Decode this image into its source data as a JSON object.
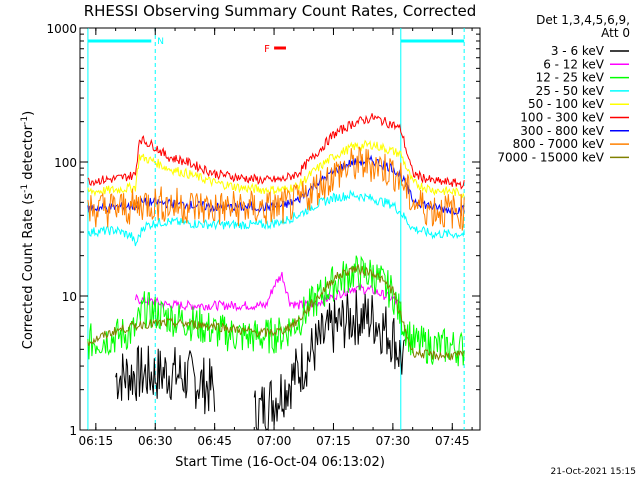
{
  "chart_data": {
    "type": "line",
    "title": "RHESSI Observing Summary Count Rates, Corrected",
    "xlabel": "Start Time (16-Oct-04 06:13:02)",
    "ylabel_parts": [
      "Corrected Count Rate (s",
      "-1",
      " detector",
      "-1",
      ")"
    ],
    "yscale": "log",
    "ylim": [
      1,
      1000
    ],
    "xlim": [
      "06:11",
      "07:52"
    ],
    "x_ticks": [
      "06:15",
      "06:30",
      "06:45",
      "07:00",
      "07:15",
      "07:30",
      "07:45"
    ],
    "y_ticks": [
      "1",
      "10",
      "100",
      "1000"
    ],
    "grid": false,
    "legend_header": [
      "Det 1,3,4,5,6,9,",
      "Att 0"
    ],
    "legend_position": "right",
    "stamp": "21-Oct-2021 15:15",
    "markers": {
      "night_label": "N",
      "flare_label": "F",
      "night_bar_1": [
        "06:13",
        "06:29"
      ],
      "night_bar_2": [
        "07:32",
        "07:48"
      ],
      "dashed_lines": [
        "06:30",
        "07:48"
      ],
      "solid_lines": [
        "06:13",
        "07:32"
      ],
      "flare_bar": [
        "06:59",
        "07:02"
      ]
    },
    "x_values": [
      "06:13",
      "06:20",
      "06:25",
      "06:27",
      "06:30",
      "06:33",
      "06:38",
      "06:45",
      "06:52",
      "06:58",
      "07:02",
      "07:06",
      "07:10",
      "07:15",
      "07:20",
      "07:25",
      "07:30",
      "07:32",
      "07:35",
      "07:40",
      "07:45",
      "07:48"
    ],
    "series": [
      {
        "name": "3 - 6 keV",
        "color": "#000000",
        "segments": [
          {
            "x": [
              "06:20",
              "06:25",
              "06:30",
              "06:33",
              "06:38",
              "06:45"
            ],
            "y": [
              2.5,
              2.6,
              2.6,
              2.7,
              2.5,
              2.0
            ]
          },
          {
            "x": [
              "06:55",
              "07:00",
              "07:05",
              "07:10",
              "07:15",
              "07:20",
              "07:25",
              "07:30",
              "07:33"
            ],
            "y": [
              1.3,
              1.7,
              2.5,
              4.0,
              5.8,
              7.0,
              6.8,
              5.0,
              3.0
            ]
          }
        ]
      },
      {
        "name": "6 - 12 keV",
        "color": "#ff00ff",
        "segments": [
          {
            "x": [
              "06:25",
              "06:30",
              "06:33",
              "06:38",
              "06:45",
              "06:52",
              "06:58",
              "07:00",
              "07:02",
              "07:04",
              "07:06",
              "07:10",
              "07:15",
              "07:20",
              "07:25",
              "07:30",
              "07:32"
            ],
            "y": [
              9.5,
              9.0,
              8.6,
              8.5,
              8.5,
              8.5,
              8.5,
              12.0,
              14.5,
              9.0,
              8.5,
              8.7,
              10.0,
              11.5,
              11.0,
              9.5,
              8.5
            ]
          }
        ]
      },
      {
        "name": "12 - 25 keV",
        "color": "#00ff00",
        "segments": [
          {
            "x": [
              "06:13",
              "06:20",
              "06:25",
              "06:27",
              "06:30",
              "06:33",
              "06:38",
              "06:45",
              "06:52",
              "06:58",
              "07:02",
              "07:06",
              "07:10",
              "07:15",
              "07:20",
              "07:25",
              "07:30",
              "07:32",
              "07:35",
              "07:40",
              "07:45",
              "07:48"
            ],
            "y": [
              4.5,
              5.0,
              5.5,
              8.0,
              7.5,
              7.0,
              6.5,
              5.5,
              5.0,
              5.0,
              5.2,
              6.5,
              9.0,
              12.5,
              15.0,
              14.5,
              10.5,
              7.0,
              4.5,
              4.2,
              4.2,
              4.0
            ]
          }
        ]
      },
      {
        "name": "25 - 50 keV",
        "color": "#00ffff",
        "segments": [
          {
            "x": [
              "06:13",
              "06:20",
              "06:24",
              "06:25",
              "06:27",
              "06:30",
              "06:33",
              "06:38",
              "06:45",
              "06:52",
              "06:58",
              "07:02",
              "07:06",
              "07:10",
              "07:15",
              "07:20",
              "07:25",
              "07:30",
              "07:32",
              "07:35",
              "07:40",
              "07:45",
              "07:48"
            ],
            "y": [
              30,
              31,
              28,
              24,
              33,
              35,
              36,
              35,
              34,
              34,
              34,
              36,
              40,
              47,
              54,
              57,
              53,
              48,
              42,
              32,
              29,
              29,
              29
            ]
          }
        ]
      },
      {
        "name": "50 - 100 keV",
        "color": "#ffff00",
        "segments": [
          {
            "x": [
              "06:13",
              "06:20",
              "06:25",
              "06:26",
              "06:30",
              "06:33",
              "06:38",
              "06:45",
              "06:52",
              "06:58",
              "07:02",
              "07:06",
              "07:10",
              "07:15",
              "07:20",
              "07:25",
              "07:30",
              "07:32",
              "07:35",
              "07:40",
              "07:45",
              "07:48"
            ],
            "y": [
              60,
              62,
              65,
              110,
              100,
              90,
              82,
              70,
              64,
              62,
              62,
              66,
              85,
              110,
              130,
              135,
              120,
              115,
              70,
              62,
              60,
              58
            ]
          }
        ]
      },
      {
        "name": "100 - 300 keV",
        "color": "#ff0000",
        "segments": [
          {
            "x": [
              "06:13",
              "06:20",
              "06:25",
              "06:26",
              "06:30",
              "06:33",
              "06:38",
              "06:45",
              "06:52",
              "06:58",
              "07:02",
              "07:06",
              "07:10",
              "07:15",
              "07:20",
              "07:25",
              "07:30",
              "07:32",
              "07:35",
              "07:40",
              "07:45",
              "07:48"
            ],
            "y": [
              72,
              75,
              80,
              150,
              130,
              110,
              100,
              82,
              76,
              73,
              74,
              82,
              110,
              160,
              195,
              215,
              190,
              175,
              82,
              72,
              70,
              68
            ]
          }
        ]
      },
      {
        "name": "300 - 800 keV",
        "color": "#0000ff",
        "segments": [
          {
            "x": [
              "06:13",
              "06:20",
              "06:25",
              "06:27",
              "06:30",
              "06:33",
              "06:38",
              "06:45",
              "06:52",
              "06:58",
              "07:02",
              "07:06",
              "07:10",
              "07:15",
              "07:20",
              "07:25",
              "07:30",
              "07:32",
              "07:35",
              "07:40",
              "07:45",
              "07:48"
            ],
            "y": [
              45,
              46,
              47,
              50,
              50,
              49,
              48,
              46,
              46,
              46,
              47,
              52,
              66,
              85,
              100,
              102,
              90,
              80,
              52,
              46,
              44,
              44
            ]
          }
        ]
      },
      {
        "name": "800 - 7000 keV",
        "color": "#ff8000",
        "segments": [
          {
            "x": [
              "06:13",
              "06:20",
              "06:25",
              "06:27",
              "06:30",
              "06:33",
              "06:38",
              "06:45",
              "06:52",
              "06:58",
              "07:02",
              "07:06",
              "07:10",
              "07:15",
              "07:20",
              "07:25",
              "07:30",
              "07:32",
              "07:35",
              "07:40",
              "07:45",
              "07:48"
            ],
            "y": [
              44,
              45,
              46,
              50,
              49,
              48,
              47,
              45,
              45,
              45,
              46,
              50,
              62,
              80,
              95,
              97,
              85,
              75,
              50,
              44,
              43,
              42
            ]
          }
        ]
      },
      {
        "name": "7000 - 15000 keV",
        "color": "#808000",
        "segments": [
          {
            "x": [
              "06:13",
              "06:20",
              "06:25",
              "06:27",
              "06:30",
              "06:33",
              "06:38",
              "06:45",
              "06:52",
              "06:58",
              "07:02",
              "07:06",
              "07:10",
              "07:15",
              "07:20",
              "07:25",
              "07:30",
              "07:32",
              "07:35",
              "07:40",
              "07:45",
              "07:48"
            ],
            "y": [
              4.5,
              5.5,
              6.0,
              6.2,
              6.2,
              6.3,
              6.2,
              6.0,
              5.5,
              5.3,
              5.5,
              6.5,
              9.0,
              13.5,
              16.0,
              15.0,
              11.0,
              7.0,
              3.8,
              3.6,
              3.6,
              3.6
            ]
          }
        ]
      }
    ]
  }
}
